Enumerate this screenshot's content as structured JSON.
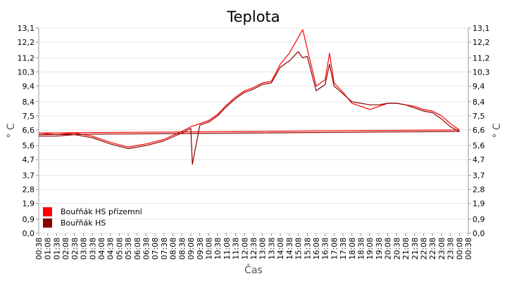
{
  "chart_data": {
    "type": "line",
    "title": "Teplota",
    "xlabel": "Čas",
    "ylabel": "° C",
    "ylabel_right": "° C",
    "ylim": [
      0,
      13.1
    ],
    "y_ticks": [
      "0,0",
      "0,9",
      "1,9",
      "2,8",
      "3,7",
      "4,7",
      "5,6",
      "6,6",
      "7,5",
      "8,4",
      "9,4",
      "10,3",
      "11,2",
      "12,2",
      "13,1"
    ],
    "x_ticks": [
      "00:38",
      "01:08",
      "01:38",
      "02:08",
      "02:38",
      "03:08",
      "03:38",
      "04:08",
      "04:38",
      "05:08",
      "05:38",
      "06:08",
      "06:38",
      "07:08",
      "07:38",
      "08:08",
      "08:38",
      "09:08",
      "09:38",
      "10:08",
      "10:38",
      "11:08",
      "11:38",
      "12:08",
      "12:38",
      "13:08",
      "13:38",
      "14:08",
      "14:38",
      "15:08",
      "15:38",
      "16:08",
      "16:38",
      "17:08",
      "17:38",
      "18:08",
      "18:38",
      "19:08",
      "19:38",
      "20:08",
      "20:38",
      "21:08",
      "21:38",
      "22:08",
      "22:38",
      "23:08",
      "23:38",
      "00:08",
      "00:38"
    ],
    "grid": true,
    "legend_position": "bottom-left",
    "series": [
      {
        "name": "Bouřňák HS přízemní",
        "color": "#ff0000",
        "x": [
          "00:38",
          "01:38",
          "02:38",
          "03:38",
          "04:38",
          "05:38",
          "06:38",
          "07:38",
          "08:38",
          "09:08",
          "09:38",
          "10:08",
          "10:38",
          "11:08",
          "11:38",
          "12:08",
          "12:38",
          "13:08",
          "13:38",
          "14:08",
          "14:38",
          "15:08",
          "15:23",
          "15:38",
          "16:08",
          "16:38",
          "16:53",
          "17:08",
          "17:38",
          "18:08",
          "18:38",
          "19:08",
          "19:38",
          "20:08",
          "20:38",
          "21:08",
          "21:38",
          "22:08",
          "22:38",
          "23:08",
          "23:38",
          "00:08",
          "00:38"
        ],
        "values": [
          6.4,
          6.3,
          6.4,
          6.2,
          5.8,
          5.5,
          5.7,
          6.0,
          6.5,
          6.8,
          7.0,
          7.2,
          7.6,
          8.2,
          8.7,
          9.1,
          9.3,
          9.6,
          9.7,
          10.8,
          11.5,
          12.5,
          13.0,
          11.8,
          9.4,
          9.8,
          11.5,
          9.6,
          9.0,
          8.3,
          8.1,
          7.9,
          8.1,
          8.3,
          8.3,
          8.2,
          8.1,
          7.9,
          7.8,
          7.5,
          7.0,
          6.6,
          6.4
        ]
      },
      {
        "name": "Bouřňák HS",
        "color": "#8b0000",
        "x": [
          "00:38",
          "01:38",
          "02:38",
          "03:38",
          "04:38",
          "05:38",
          "06:38",
          "07:38",
          "08:38",
          "09:08",
          "09:13",
          "09:38",
          "10:08",
          "10:38",
          "11:08",
          "11:38",
          "12:08",
          "12:38",
          "13:08",
          "13:38",
          "14:08",
          "14:38",
          "15:08",
          "15:23",
          "15:38",
          "16:08",
          "16:38",
          "16:53",
          "17:08",
          "17:38",
          "18:08",
          "18:38",
          "19:08",
          "19:38",
          "20:08",
          "20:38",
          "21:08",
          "21:38",
          "22:08",
          "22:38",
          "23:08",
          "23:38",
          "00:08",
          "00:38"
        ],
        "values": [
          6.2,
          6.2,
          6.3,
          6.1,
          5.7,
          5.4,
          5.6,
          5.9,
          6.4,
          6.7,
          4.4,
          6.9,
          7.1,
          7.5,
          8.1,
          8.6,
          9.0,
          9.2,
          9.5,
          9.6,
          10.6,
          11.0,
          11.6,
          11.2,
          11.3,
          9.1,
          9.5,
          10.8,
          9.4,
          8.9,
          8.4,
          8.3,
          8.2,
          8.2,
          8.3,
          8.3,
          8.2,
          8.0,
          7.8,
          7.7,
          7.3,
          6.8,
          6.5,
          6.3
        ]
      }
    ]
  }
}
